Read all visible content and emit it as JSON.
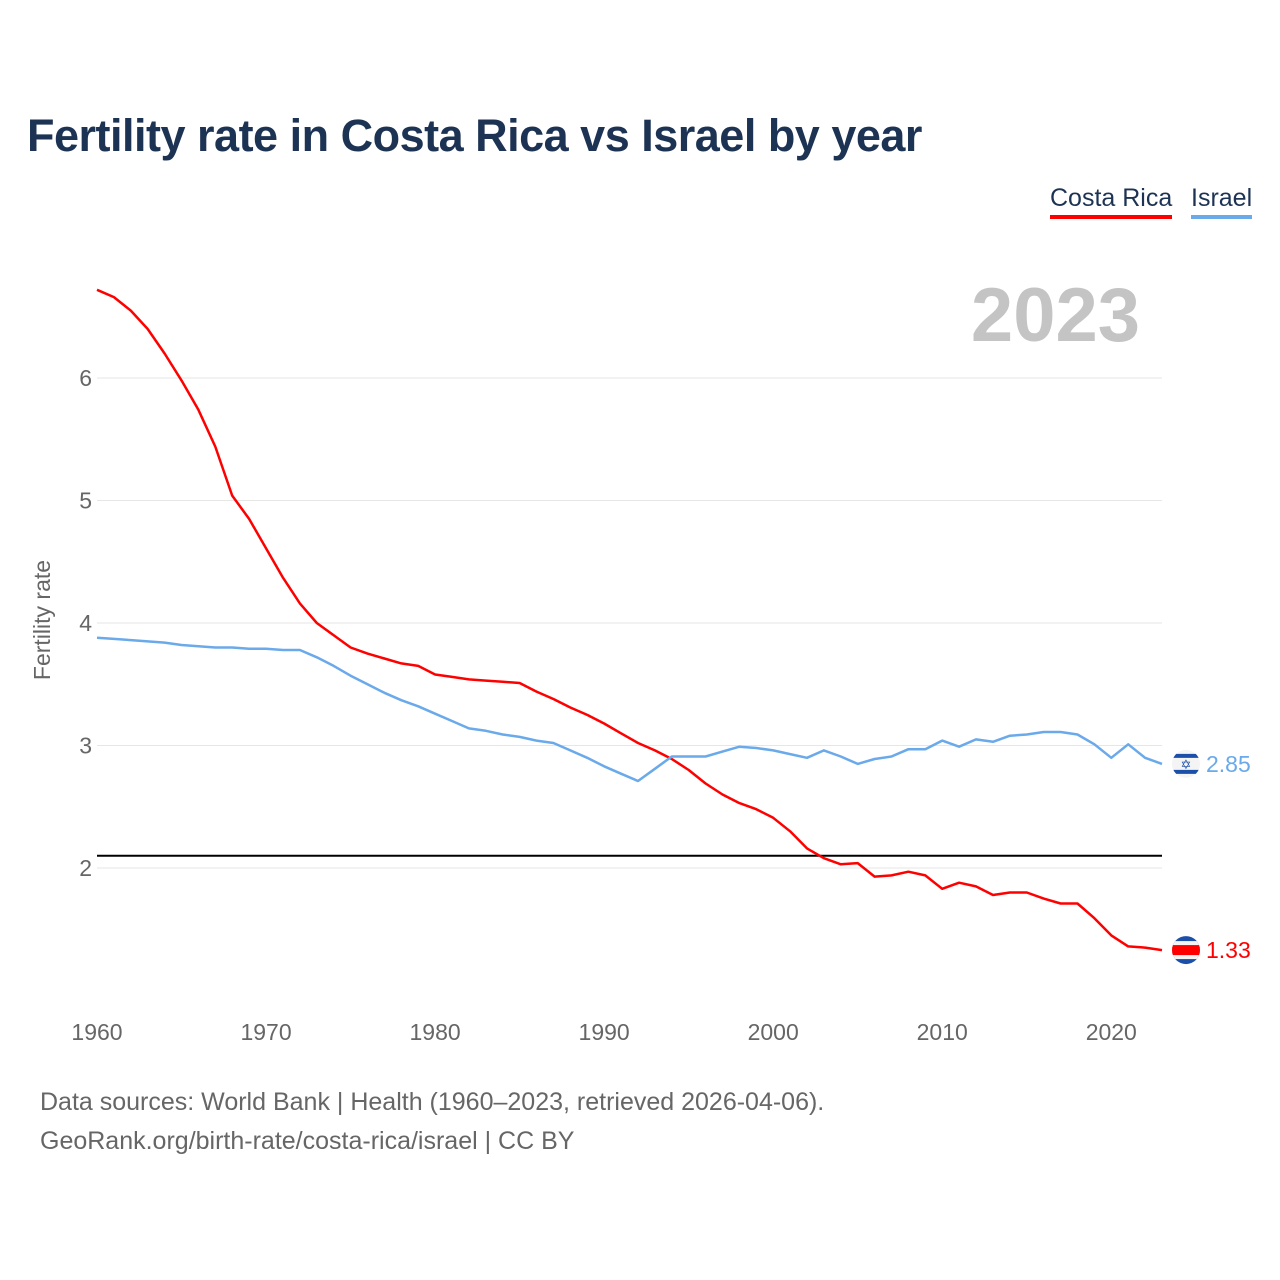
{
  "chart_data": {
    "type": "line",
    "title": "Fertility rate in Costa Rica vs Israel by year",
    "xlabel": "",
    "ylabel": "Fertility rate",
    "xlim": [
      1960,
      2023
    ],
    "ylim": [
      1.0,
      6.9
    ],
    "x_ticks": [
      1960,
      1970,
      1980,
      1990,
      2000,
      2010,
      2020
    ],
    "y_ticks": [
      2,
      3,
      4,
      5,
      6
    ],
    "grid": "horizontal",
    "legend_position": "top-right",
    "year_label": "2023",
    "reference_line": {
      "value": 2.1,
      "color": "#000000"
    },
    "x": [
      1960,
      1961,
      1962,
      1963,
      1964,
      1965,
      1966,
      1967,
      1968,
      1969,
      1970,
      1971,
      1972,
      1973,
      1974,
      1975,
      1976,
      1977,
      1978,
      1979,
      1980,
      1981,
      1982,
      1983,
      1984,
      1985,
      1986,
      1987,
      1988,
      1989,
      1990,
      1991,
      1992,
      1993,
      1994,
      1995,
      1996,
      1997,
      1998,
      1999,
      2000,
      2001,
      2002,
      2003,
      2004,
      2005,
      2006,
      2007,
      2008,
      2009,
      2010,
      2011,
      2012,
      2013,
      2014,
      2015,
      2016,
      2017,
      2018,
      2019,
      2020,
      2021,
      2022,
      2023
    ],
    "series": [
      {
        "name": "Costa Rica",
        "color": "#ff0000",
        "end_label": "1.33",
        "values": [
          6.72,
          6.66,
          6.55,
          6.4,
          6.2,
          5.98,
          5.74,
          5.44,
          5.04,
          4.85,
          4.61,
          4.37,
          4.16,
          4.0,
          3.9,
          3.8,
          3.75,
          3.71,
          3.67,
          3.65,
          3.58,
          3.56,
          3.54,
          3.53,
          3.52,
          3.51,
          3.44,
          3.38,
          3.31,
          3.25,
          3.18,
          3.1,
          3.02,
          2.96,
          2.89,
          2.8,
          2.69,
          2.6,
          2.53,
          2.48,
          2.41,
          2.3,
          2.16,
          2.08,
          2.03,
          2.04,
          1.93,
          1.94,
          1.97,
          1.94,
          1.83,
          1.88,
          1.85,
          1.78,
          1.8,
          1.8,
          1.75,
          1.71,
          1.71,
          1.59,
          1.45,
          1.36,
          1.35,
          1.33
        ]
      },
      {
        "name": "Israel",
        "color": "#6aa9ea",
        "end_label": "2.85",
        "values": [
          3.88,
          3.87,
          3.86,
          3.85,
          3.84,
          3.82,
          3.81,
          3.8,
          3.8,
          3.79,
          3.79,
          3.78,
          3.78,
          3.72,
          3.65,
          3.57,
          3.5,
          3.43,
          3.37,
          3.32,
          3.26,
          3.2,
          3.14,
          3.12,
          3.09,
          3.07,
          3.04,
          3.02,
          2.96,
          2.9,
          2.83,
          2.77,
          2.71,
          2.81,
          2.91,
          2.91,
          2.91,
          2.95,
          2.99,
          2.98,
          2.96,
          2.93,
          2.9,
          2.96,
          2.91,
          2.85,
          2.89,
          2.91,
          2.97,
          2.97,
          3.04,
          2.99,
          3.05,
          3.03,
          3.08,
          3.09,
          3.11,
          3.11,
          3.09,
          3.01,
          2.9,
          3.01,
          2.9,
          2.85
        ]
      }
    ]
  },
  "footer": {
    "line1": "Data sources: World Bank | Health (1960–2023, retrieved 2026-04-06).",
    "line2": "GeoRank.org/birth-rate/costa-rica/israel | CC BY"
  }
}
